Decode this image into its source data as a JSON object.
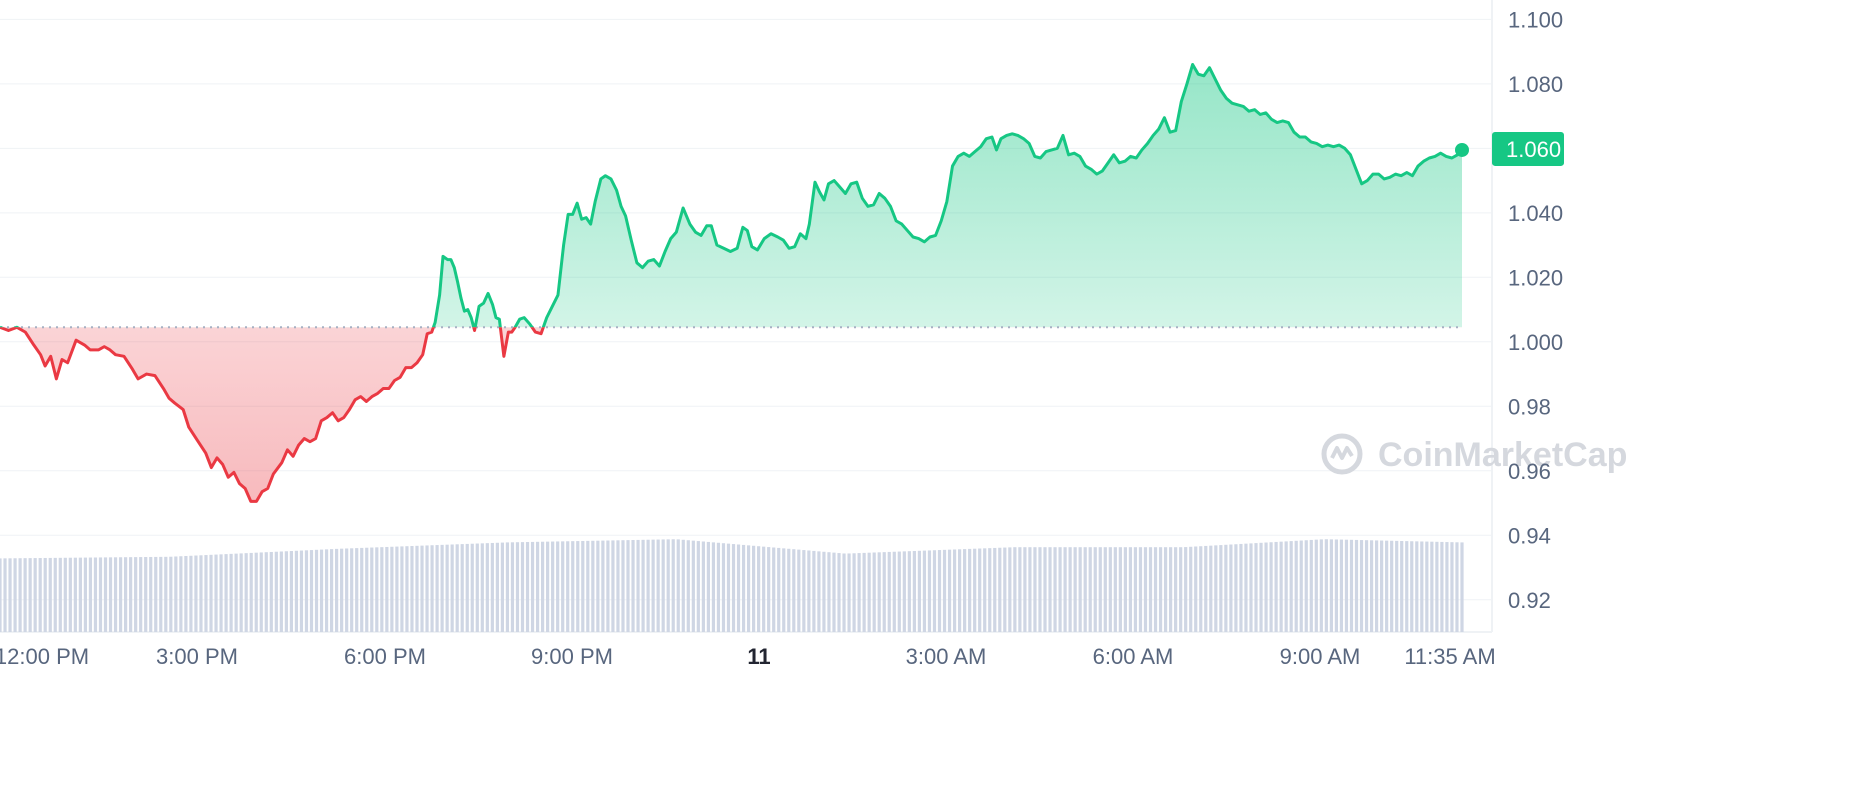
{
  "chart_data": {
    "type": "line",
    "y_ticks": [
      "1.100",
      "1.080",
      "1.060",
      "1.040",
      "1.020",
      "1.000",
      "0.98",
      "0.96",
      "0.94",
      "0.92"
    ],
    "y_tick_values": [
      1.1,
      1.08,
      1.06,
      1.04,
      1.02,
      1.0,
      0.98,
      0.96,
      0.94,
      0.92
    ],
    "ylim": [
      0.91,
      1.106
    ],
    "x_ticks": [
      "12:00 PM",
      "3:00 PM",
      "6:00 PM",
      "9:00 PM",
      "11",
      "3:00 AM",
      "6:00 AM",
      "9:00 AM",
      "11:35 AM"
    ],
    "x_tick_hours": [
      0,
      3,
      6,
      9,
      12,
      15,
      18,
      21,
      23.583
    ],
    "xlim_hours": [
      -0.05,
      23.75
    ],
    "baseline": 1.0045,
    "current_price_label": "1.060",
    "current_price": 1.0595,
    "colors": {
      "up": "#16c784",
      "down": "#ea3943",
      "volume": "#cfd6e4",
      "baseline": "#a6b0c3",
      "grid": "#eff2f5"
    },
    "grid": true,
    "watermark": "CoinMarketCap",
    "series": [
      {
        "values": [
          [
            0.0,
            1.0045
          ],
          [
            0.15,
            1.0035
          ],
          [
            0.3,
            1.0045
          ],
          [
            0.45,
            1.003
          ],
          [
            0.6,
            0.999
          ],
          [
            0.72,
            0.996
          ],
          [
            0.8,
            0.9925
          ],
          [
            0.9,
            0.9955
          ],
          [
            1.0,
            0.9885
          ],
          [
            1.1,
            0.9945
          ],
          [
            1.2,
            0.9935
          ],
          [
            1.35,
            1.0005
          ],
          [
            1.5,
            0.999
          ],
          [
            1.6,
            0.9975
          ],
          [
            1.75,
            0.9975
          ],
          [
            1.85,
            0.9985
          ],
          [
            1.95,
            0.9975
          ],
          [
            2.05,
            0.996
          ],
          [
            2.2,
            0.9955
          ],
          [
            2.35,
            0.9915
          ],
          [
            2.45,
            0.9885
          ],
          [
            2.6,
            0.99
          ],
          [
            2.75,
            0.9895
          ],
          [
            2.9,
            0.9855
          ],
          [
            3.0,
            0.9825
          ],
          [
            3.1,
            0.981
          ],
          [
            3.25,
            0.979
          ],
          [
            3.35,
            0.9735
          ],
          [
            3.5,
            0.9695
          ],
          [
            3.65,
            0.9655
          ],
          [
            3.75,
            0.961
          ],
          [
            3.85,
            0.964
          ],
          [
            3.95,
            0.962
          ],
          [
            4.05,
            0.958
          ],
          [
            4.15,
            0.9595
          ],
          [
            4.25,
            0.956
          ],
          [
            4.35,
            0.9545
          ],
          [
            4.45,
            0.9505
          ],
          [
            4.55,
            0.9505
          ],
          [
            4.65,
            0.9535
          ],
          [
            4.75,
            0.9545
          ],
          [
            4.85,
            0.959
          ],
          [
            5.0,
            0.9625
          ],
          [
            5.1,
            0.9665
          ],
          [
            5.2,
            0.9645
          ],
          [
            5.3,
            0.968
          ],
          [
            5.4,
            0.97
          ],
          [
            5.5,
            0.969
          ],
          [
            5.6,
            0.97
          ],
          [
            5.7,
            0.9755
          ],
          [
            5.8,
            0.9765
          ],
          [
            5.9,
            0.978
          ],
          [
            6.0,
            0.9755
          ],
          [
            6.1,
            0.9765
          ],
          [
            6.2,
            0.979
          ],
          [
            6.3,
            0.982
          ],
          [
            6.4,
            0.983
          ],
          [
            6.5,
            0.9815
          ],
          [
            6.6,
            0.983
          ],
          [
            6.7,
            0.984
          ],
          [
            6.8,
            0.9855
          ],
          [
            6.9,
            0.9855
          ],
          [
            7.0,
            0.988
          ],
          [
            7.1,
            0.989
          ],
          [
            7.2,
            0.992
          ],
          [
            7.3,
            0.992
          ],
          [
            7.4,
            0.9935
          ],
          [
            7.5,
            0.996
          ],
          [
            7.58,
            1.0025
          ],
          [
            7.66,
            1.003
          ],
          [
            7.72,
            1.006
          ],
          [
            7.8,
            1.0145
          ],
          [
            7.86,
            1.0265
          ],
          [
            7.94,
            1.0255
          ],
          [
            8.0,
            1.0255
          ],
          [
            8.06,
            1.023
          ],
          [
            8.12,
            1.0185
          ],
          [
            8.18,
            1.0135
          ],
          [
            8.24,
            1.0095
          ],
          [
            8.3,
            1.01
          ],
          [
            8.36,
            1.0075
          ],
          [
            8.42,
            1.0035
          ],
          [
            8.5,
            1.011
          ],
          [
            8.58,
            1.012
          ],
          [
            8.66,
            1.015
          ],
          [
            8.74,
            1.0115
          ],
          [
            8.8,
            1.0075
          ],
          [
            8.86,
            1.007
          ],
          [
            8.94,
            0.9955
          ],
          [
            9.02,
            1.003
          ],
          [
            9.08,
            1.003
          ],
          [
            9.14,
            1.0045
          ],
          [
            9.22,
            1.007
          ],
          [
            9.3,
            1.0075
          ],
          [
            9.4,
            1.0055
          ],
          [
            9.5,
            1.003
          ],
          [
            9.6,
            1.0025
          ],
          [
            9.7,
            1.0075
          ],
          [
            9.8,
            1.011
          ],
          [
            9.9,
            1.0145
          ],
          [
            10.0,
            1.03
          ],
          [
            10.08,
            1.0395
          ],
          [
            10.16,
            1.0395
          ],
          [
            10.24,
            1.043
          ],
          [
            10.32,
            1.038
          ],
          [
            10.4,
            1.0385
          ],
          [
            10.48,
            1.0365
          ],
          [
            10.56,
            1.0435
          ],
          [
            10.66,
            1.0505
          ],
          [
            10.74,
            1.0515
          ],
          [
            10.84,
            1.0505
          ],
          [
            10.94,
            1.047
          ],
          [
            11.02,
            1.042
          ],
          [
            11.1,
            1.039
          ],
          [
            11.2,
            1.0315
          ],
          [
            11.3,
            1.0245
          ],
          [
            11.4,
            1.023
          ],
          [
            11.5,
            1.025
          ],
          [
            11.6,
            1.0255
          ],
          [
            11.7,
            1.0235
          ],
          [
            11.8,
            1.028
          ],
          [
            11.9,
            1.032
          ],
          [
            12.0,
            1.034
          ],
          [
            12.12,
            1.0415
          ],
          [
            12.24,
            1.0365
          ],
          [
            12.34,
            1.034
          ],
          [
            12.44,
            1.033
          ],
          [
            12.54,
            1.036
          ],
          [
            12.62,
            1.036
          ],
          [
            12.72,
            1.03
          ],
          [
            12.84,
            1.029
          ],
          [
            12.96,
            1.028
          ],
          [
            13.08,
            1.029
          ],
          [
            13.18,
            1.0355
          ],
          [
            13.26,
            1.0345
          ],
          [
            13.34,
            1.0295
          ],
          [
            13.44,
            1.0285
          ],
          [
            13.56,
            1.032
          ],
          [
            13.68,
            1.0335
          ],
          [
            13.8,
            1.0325
          ],
          [
            13.9,
            1.0315
          ],
          [
            14.0,
            1.029
          ],
          [
            14.1,
            1.0295
          ],
          [
            14.2,
            1.0335
          ],
          [
            14.3,
            1.032
          ],
          [
            14.36,
            1.0365
          ],
          [
            14.46,
            1.0495
          ],
          [
            14.54,
            1.0465
          ],
          [
            14.62,
            1.044
          ],
          [
            14.7,
            1.049
          ],
          [
            14.8,
            1.05
          ],
          [
            14.9,
            1.048
          ],
          [
            15.0,
            1.046
          ],
          [
            15.1,
            1.049
          ],
          [
            15.2,
            1.0495
          ],
          [
            15.3,
            1.0445
          ],
          [
            15.4,
            1.042
          ],
          [
            15.5,
            1.0425
          ],
          [
            15.6,
            1.046
          ],
          [
            15.7,
            1.0445
          ],
          [
            15.8,
            1.042
          ],
          [
            15.9,
            1.0375
          ],
          [
            16.0,
            1.0365
          ],
          [
            16.1,
            1.0345
          ],
          [
            16.2,
            1.0325
          ],
          [
            16.3,
            1.032
          ],
          [
            16.4,
            1.031
          ],
          [
            16.5,
            1.0325
          ],
          [
            16.6,
            1.033
          ],
          [
            16.7,
            1.0375
          ],
          [
            16.8,
            1.0435
          ],
          [
            16.9,
            1.0545
          ],
          [
            17.0,
            1.0575
          ],
          [
            17.1,
            1.0585
          ],
          [
            17.2,
            1.0575
          ],
          [
            17.3,
            1.059
          ],
          [
            17.4,
            1.0605
          ],
          [
            17.5,
            1.063
          ],
          [
            17.6,
            1.0635
          ],
          [
            17.68,
            1.0595
          ],
          [
            17.76,
            1.063
          ],
          [
            17.86,
            1.064
          ],
          [
            17.96,
            1.0645
          ],
          [
            18.06,
            1.064
          ],
          [
            18.16,
            1.063
          ],
          [
            18.26,
            1.0615
          ],
          [
            18.36,
            1.0575
          ],
          [
            18.46,
            1.057
          ],
          [
            18.56,
            1.059
          ],
          [
            18.66,
            1.0595
          ],
          [
            18.76,
            1.06
          ],
          [
            18.86,
            1.064
          ],
          [
            18.96,
            1.058
          ],
          [
            19.06,
            1.0585
          ],
          [
            19.16,
            1.0575
          ],
          [
            19.26,
            1.0545
          ],
          [
            19.36,
            1.0535
          ],
          [
            19.46,
            1.052
          ],
          [
            19.56,
            1.053
          ],
          [
            19.66,
            1.0555
          ],
          [
            19.76,
            1.058
          ],
          [
            19.86,
            1.0555
          ],
          [
            19.96,
            1.056
          ],
          [
            20.06,
            1.0575
          ],
          [
            20.16,
            1.057
          ],
          [
            20.26,
            1.0595
          ],
          [
            20.36,
            1.0615
          ],
          [
            20.46,
            1.064
          ],
          [
            20.56,
            1.066
          ],
          [
            20.66,
            1.0695
          ],
          [
            20.76,
            1.065
          ],
          [
            20.86,
            1.0655
          ],
          [
            20.96,
            1.0745
          ],
          [
            21.06,
            1.08
          ],
          [
            21.16,
            1.086
          ],
          [
            21.26,
            1.083
          ],
          [
            21.36,
            1.0825
          ],
          [
            21.46,
            1.085
          ],
          [
            21.56,
            1.0815
          ],
          [
            21.66,
            1.078
          ],
          [
            21.76,
            1.0755
          ],
          [
            21.86,
            1.074
          ],
          [
            21.96,
            1.0735
          ],
          [
            22.06,
            1.073
          ],
          [
            22.16,
            1.0715
          ],
          [
            22.26,
            1.072
          ],
          [
            22.36,
            1.0705
          ],
          [
            22.46,
            1.071
          ],
          [
            22.56,
            1.069
          ],
          [
            22.66,
            1.068
          ],
          [
            22.76,
            1.0685
          ],
          [
            22.86,
            1.068
          ],
          [
            22.96,
            1.065
          ],
          [
            23.06,
            1.0635
          ],
          [
            23.16,
            1.0635
          ],
          [
            23.26,
            1.062
          ],
          [
            23.36,
            1.0615
          ],
          [
            23.46,
            1.0605
          ],
          [
            23.56,
            1.061
          ],
          [
            23.66,
            1.0605
          ],
          [
            23.76,
            1.061
          ],
          [
            23.86,
            1.06
          ],
          [
            23.96,
            1.058
          ],
          [
            24.06,
            1.0535
          ],
          [
            24.16,
            1.049
          ],
          [
            24.26,
            1.05
          ],
          [
            24.36,
            1.052
          ],
          [
            24.46,
            1.052
          ],
          [
            24.56,
            1.0505
          ],
          [
            24.66,
            1.051
          ],
          [
            24.76,
            1.052
          ],
          [
            24.86,
            1.0515
          ],
          [
            24.96,
            1.0525
          ],
          [
            25.06,
            1.0515
          ],
          [
            25.16,
            1.0545
          ],
          [
            25.26,
            1.056
          ],
          [
            25.36,
            1.057
          ],
          [
            25.46,
            1.0575
          ],
          [
            25.56,
            1.0585
          ],
          [
            25.66,
            1.0575
          ],
          [
            25.76,
            1.057
          ],
          [
            25.86,
            1.058
          ],
          [
            25.94,
            1.0595
          ]
        ]
      }
    ],
    "volume": {
      "note_keypoints": "relative bar heights (0-1) at hour positions",
      "keypoints": [
        [
          0,
          0.46
        ],
        [
          3,
          0.47
        ],
        [
          6,
          0.52
        ],
        [
          9,
          0.56
        ],
        [
          12,
          0.58
        ],
        [
          15,
          0.49
        ],
        [
          18,
          0.53
        ],
        [
          21,
          0.53
        ],
        [
          23.5,
          0.58
        ],
        [
          25.94,
          0.56
        ]
      ]
    }
  }
}
